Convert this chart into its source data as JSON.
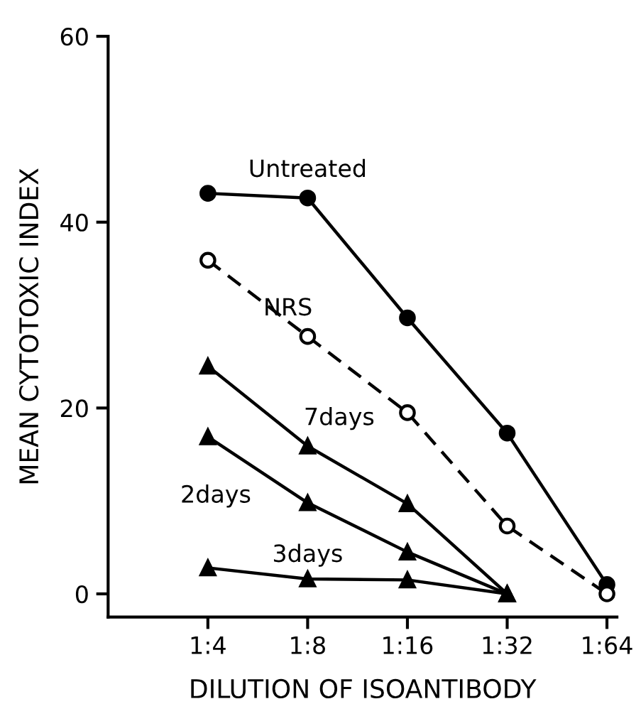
{
  "chart_data": {
    "type": "line",
    "xlabel": "DILUTION OF ISOANTIBODY",
    "ylabel": "MEAN CYTOTOXIC INDEX",
    "categories": [
      "1:4",
      "1:8",
      "1:16",
      "1:32",
      "1:64"
    ],
    "series": [
      {
        "name": "Untreated",
        "color": "#000000",
        "marker": "circle",
        "line_style": "solid",
        "values": [
          43.1,
          42.6,
          29.7,
          17.3,
          1.0
        ]
      },
      {
        "name": "NRS",
        "color": "#000000",
        "marker": "open circle",
        "line_style": "dashed",
        "values": [
          35.9,
          27.7,
          19.5,
          7.3,
          0
        ]
      },
      {
        "name": "7days",
        "color": "#000000",
        "marker": "triangle",
        "line_style": "solid",
        "values": [
          24.5,
          15.9,
          9.7,
          0,
          null
        ]
      },
      {
        "name": "2days",
        "color": "#000000",
        "marker": "triangle",
        "line_style": "solid",
        "values": [
          16.9,
          9.8,
          4.5,
          0,
          null
        ]
      },
      {
        "name": "3days",
        "color": "#000000",
        "marker": "triangle",
        "line_style": "solid",
        "values": [
          2.8,
          1.6,
          1.5,
          0,
          null
        ]
      }
    ],
    "ylim": [
      -2.5,
      60
    ],
    "yticks": [
      0,
      20,
      40,
      60
    ],
    "grid": false,
    "legend": false
  }
}
